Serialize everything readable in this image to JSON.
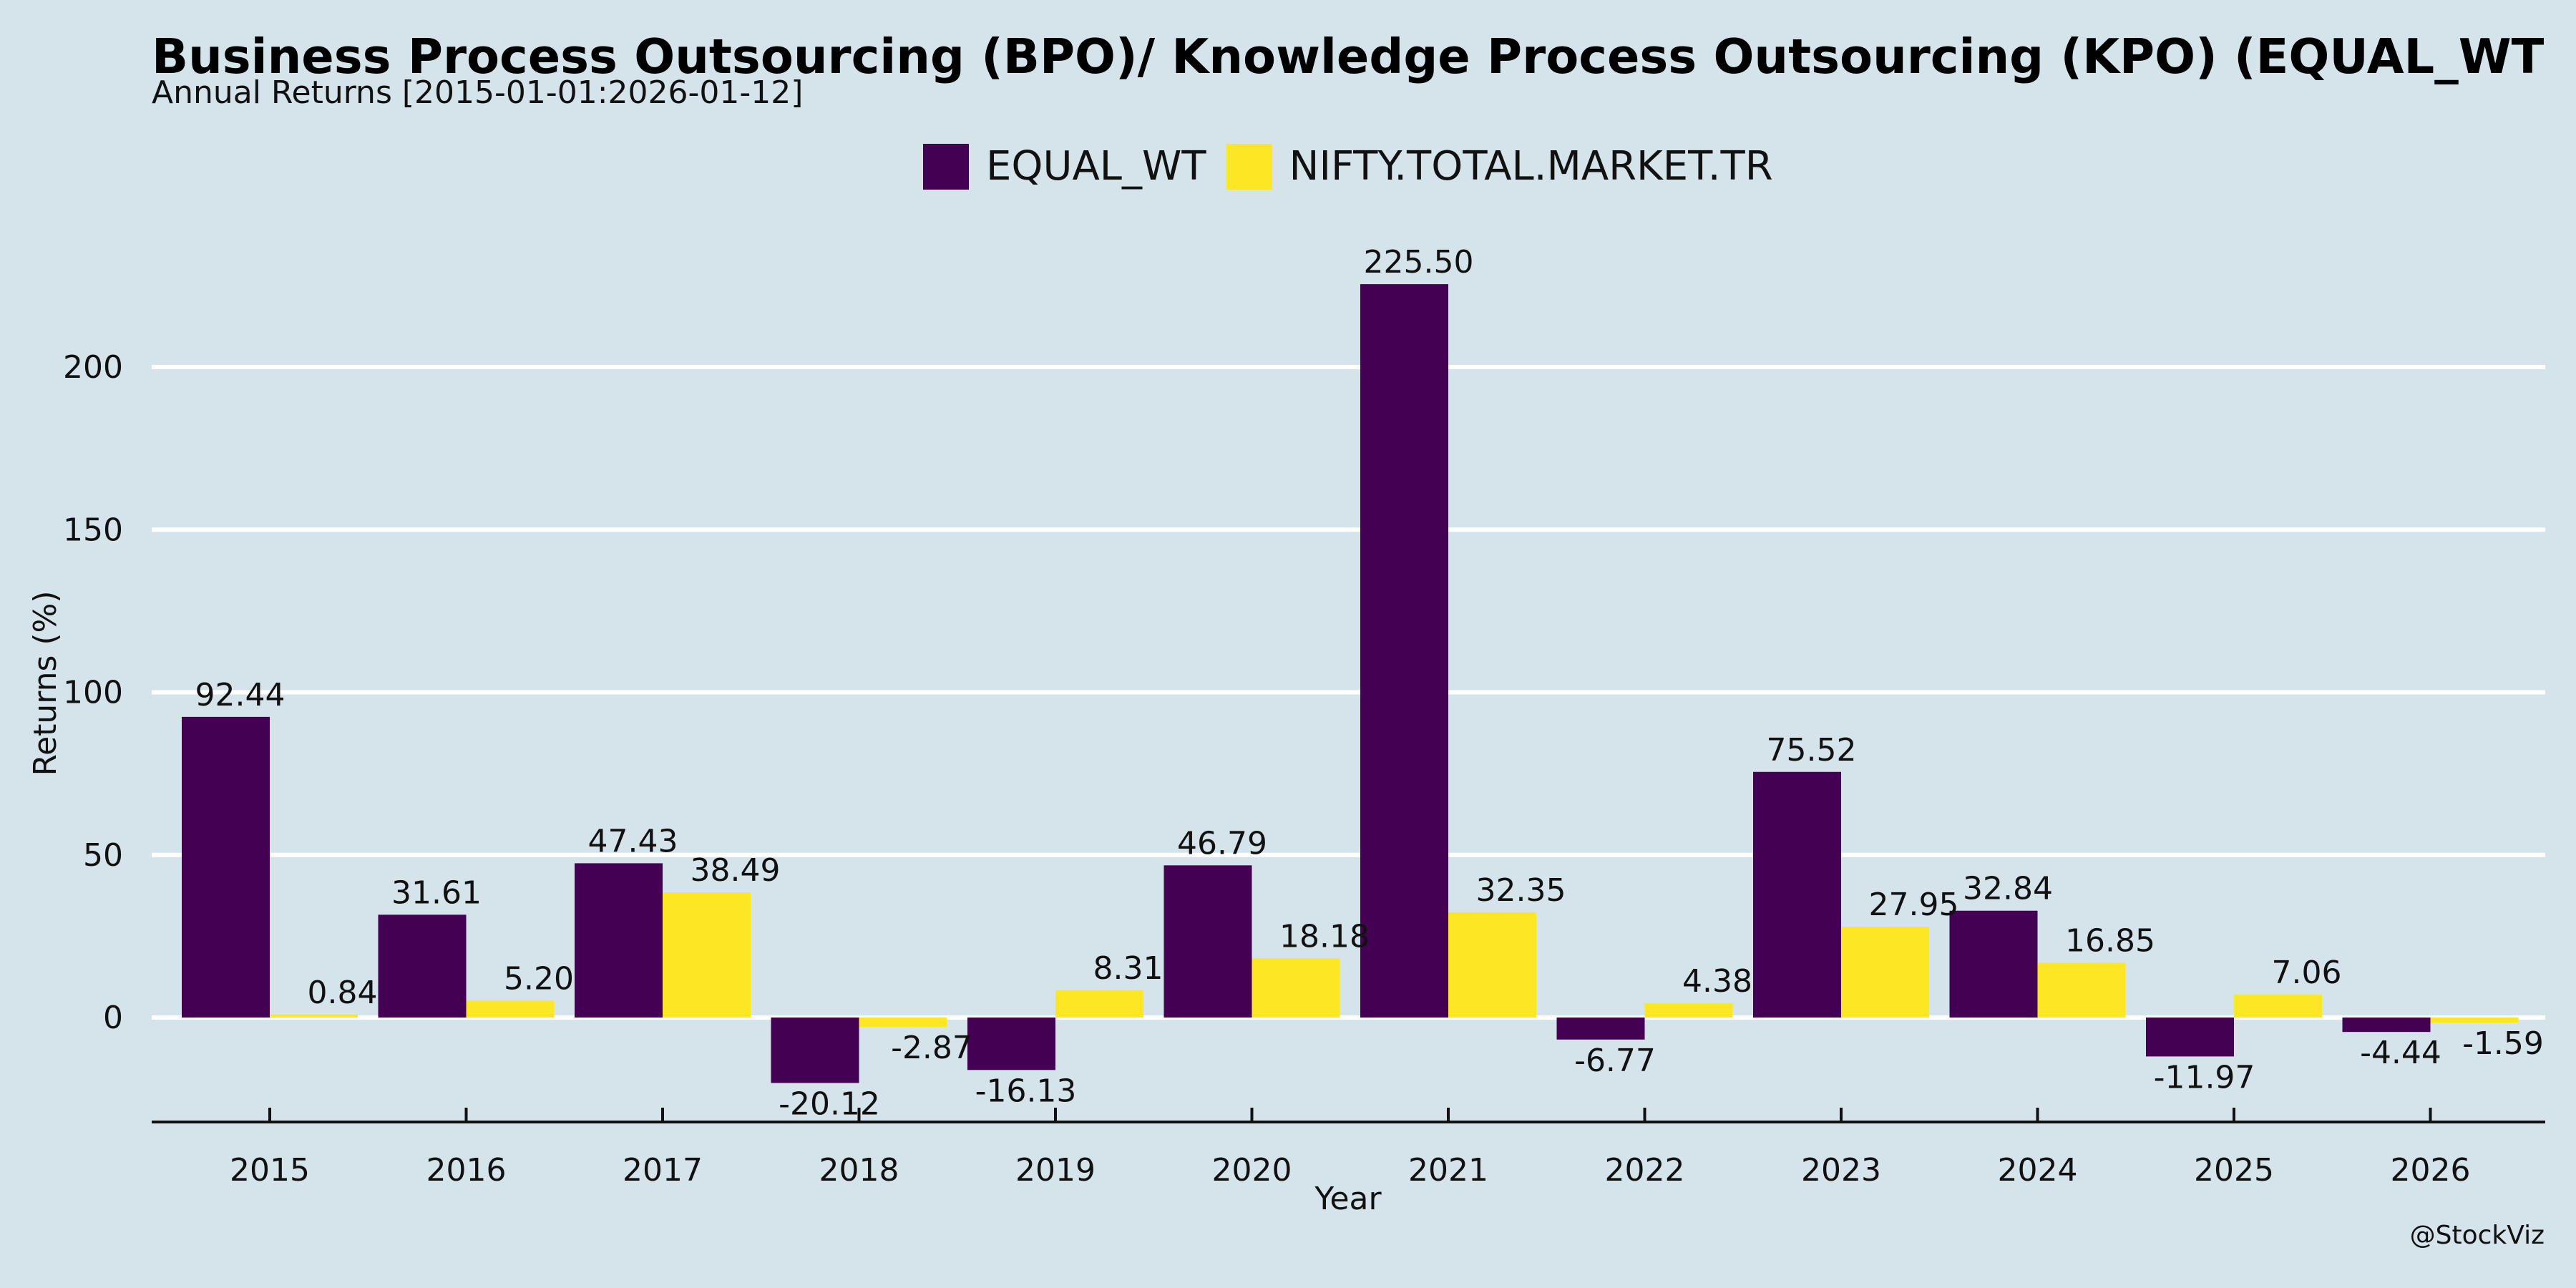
{
  "header": {
    "title": "Business Process Outsourcing (BPO)/ Knowledge Process Outsourcing (KPO) (EQUAL_WT",
    "subtitle": "Annual Returns [2015-01-01:2026-01-12]"
  },
  "watermark": "@StockViz",
  "chart_data": {
    "type": "bar",
    "title": "Business Process Outsourcing (BPO)/ Knowledge Process Outsourcing (KPO) (EQUAL_WT",
    "subtitle": "Annual Returns [2015-01-01:2026-01-12]",
    "xlabel": "Year",
    "ylabel": "Returns (%)",
    "categories": [
      "2015",
      "2016",
      "2017",
      "2018",
      "2019",
      "2020",
      "2021",
      "2022",
      "2023",
      "2024",
      "2025",
      "2026"
    ],
    "series": [
      {
        "name": "EQUAL_WT",
        "color": "#440154",
        "values": [
          92.44,
          31.61,
          47.43,
          -20.12,
          -16.13,
          46.79,
          225.5,
          -6.77,
          75.52,
          32.84,
          -11.97,
          -4.44
        ]
      },
      {
        "name": "NIFTY.TOTAL.MARKET.TR",
        "color": "#fde725",
        "values": [
          0.84,
          5.2,
          38.49,
          -2.87,
          8.31,
          18.18,
          32.35,
          4.38,
          27.95,
          16.85,
          7.06,
          -1.59
        ]
      }
    ],
    "yticks": [
      0,
      50,
      100,
      150,
      200
    ],
    "ylim": [
      -32,
      240
    ],
    "grid": true,
    "legend": "top-center",
    "background": "#d5e4eb"
  }
}
